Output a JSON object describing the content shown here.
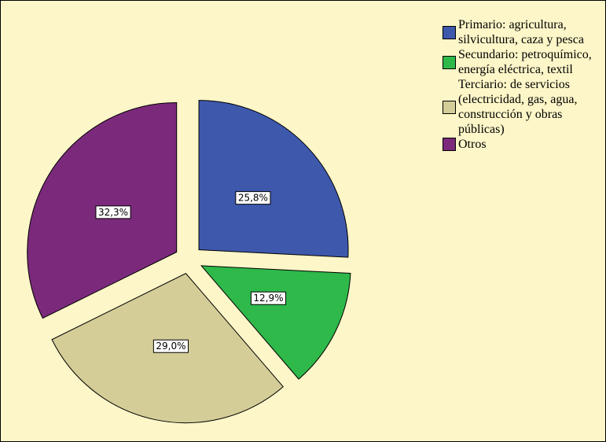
{
  "chart_data": {
    "type": "pie",
    "categories": [
      "Primario: agricultura, silvicultura, caza y pesca",
      "Secundario: petroquímico, energía eléctrica, textil",
      "Terciario: de servicios (electricidad, gas, agua, construcción y obras públicas)",
      "Otros"
    ],
    "values": [
      25.8,
      12.9,
      29.0,
      32.3
    ],
    "value_labels": [
      "25,8%",
      "12,9%",
      "29,0%",
      "32,3%"
    ],
    "colors": [
      "#3e58ac",
      "#2eb94a",
      "#d4cd98",
      "#7b2a7b"
    ],
    "legend": "right"
  }
}
